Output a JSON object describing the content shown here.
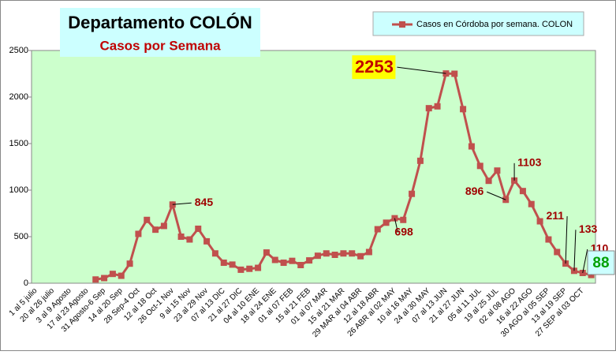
{
  "chart_data": {
    "type": "line",
    "title": "Departamento COLÓN",
    "subtitle": "Casos por Semana",
    "categories": [
      "1 al 5 julio",
      null,
      "20 al 26 julio",
      null,
      "3 al 9 Agosto",
      null,
      "17 al 23 Agosto",
      null,
      "31 Agosto-6 Sep",
      null,
      "14 al 20 Sep",
      null,
      "28 Sep-4 Oct",
      null,
      "12 al 18 Oct",
      null,
      "26 Oct-1 Nov",
      null,
      "9 al 15 Nov",
      null,
      "23 al 29 Nov",
      null,
      "07 al 13 DIC",
      null,
      "21 al 27 DIC",
      null,
      "04 al 10 ENE",
      null,
      "18 al 24 ENE",
      null,
      "01 al 07 FEB",
      null,
      "15 al 21 FEB",
      null,
      "01 al 07 MAR",
      null,
      "15 al 21 MAR",
      null,
      "29 MAR al 04 ABR",
      null,
      "12 al 18 ABR",
      null,
      "26 ABR al 02 MAY",
      null,
      "10 al 16 MAY",
      null,
      "24 al 30 MAY",
      null,
      "07 al 13 JUN",
      null,
      "21 al 27 JUN",
      null,
      "05 al 11 JUL",
      null,
      "19 al 25 JUL",
      null,
      "02 al 08 AGO",
      null,
      "16 al 22 AGO",
      null,
      "30 AGO al 05 SEP",
      null,
      "13 al 19 SEP",
      null,
      "27 SEP al 03 OCT",
      null
    ],
    "series": [
      {
        "name": "Casos en Córdoba por semana. COLON",
        "color": "#c0504d",
        "values": [
          null,
          null,
          null,
          null,
          null,
          null,
          null,
          40,
          55,
          100,
          80,
          210,
          530,
          680,
          575,
          615,
          845,
          500,
          470,
          585,
          450,
          320,
          220,
          200,
          145,
          155,
          165,
          330,
          250,
          220,
          240,
          195,
          245,
          295,
          320,
          305,
          320,
          320,
          290,
          335,
          580,
          650,
          698,
          680,
          960,
          1315,
          1880,
          1900,
          2253,
          2250,
          1870,
          1470,
          1260,
          1100,
          1210,
          896,
          1103,
          990,
          850,
          665,
          470,
          335,
          211,
          133,
          110,
          88
        ],
        "value_labels": [
          null,
          null,
          null,
          null,
          null,
          null,
          null,
          null,
          null,
          null,
          null,
          null,
          null,
          null,
          null,
          null,
          "845",
          null,
          null,
          null,
          null,
          null,
          null,
          null,
          null,
          null,
          null,
          null,
          null,
          null,
          null,
          null,
          null,
          null,
          null,
          null,
          null,
          null,
          null,
          null,
          null,
          null,
          "698",
          null,
          null,
          null,
          null,
          null,
          "2253",
          null,
          null,
          null,
          null,
          null,
          null,
          "896",
          "1103",
          null,
          null,
          null,
          null,
          null,
          "211",
          "133",
          "110",
          "88"
        ]
      }
    ],
    "ylim": [
      0,
      2500
    ],
    "yticks": [
      0,
      500,
      1000,
      1500,
      2000,
      2500
    ],
    "grid": false
  }
}
